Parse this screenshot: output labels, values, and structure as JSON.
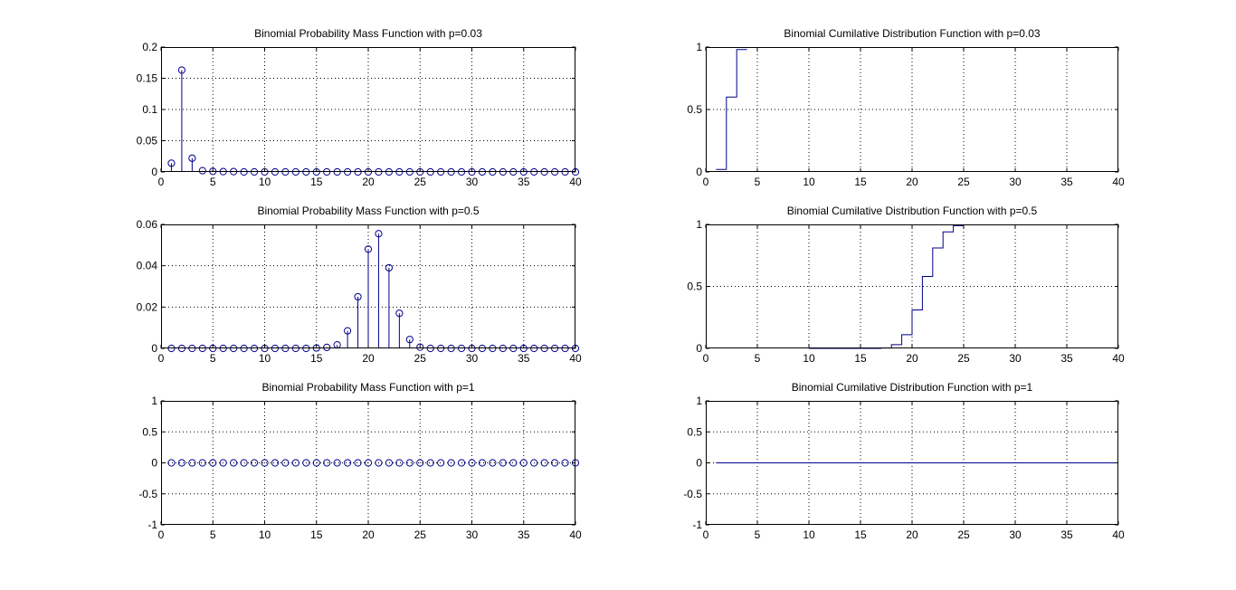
{
  "figure": {
    "background": "#ffffff",
    "series_color": "#00008b"
  },
  "chart_data": [
    {
      "type": "stem",
      "title": "Binomial Probability Mass Function with p=0.03",
      "xlim": [
        0,
        40
      ],
      "ylim": [
        0,
        0.2
      ],
      "xticks": [
        0,
        5,
        10,
        15,
        20,
        25,
        30,
        35,
        40
      ],
      "yticks": [
        0,
        0.05,
        0.1,
        0.15,
        0.2
      ],
      "xticklabels": [
        "0",
        "5",
        "10",
        "15",
        "20",
        "25",
        "30",
        "35",
        "40"
      ],
      "yticklabels": [
        "0",
        "0.05",
        "0.1",
        "0.15",
        "0.2"
      ],
      "grid": true,
      "x": [
        1,
        2,
        3,
        4,
        5,
        6,
        7,
        8,
        9,
        10,
        11,
        12,
        13,
        14,
        15,
        16,
        17,
        18,
        19,
        20,
        21,
        22,
        23,
        24,
        25,
        26,
        27,
        28,
        29,
        30,
        31,
        32,
        33,
        34,
        35,
        36,
        37,
        38,
        39,
        40
      ],
      "y": [
        0.014,
        0.163,
        0.022,
        0.002,
        0.001,
        0.0005,
        0.0005,
        0,
        0,
        0,
        0,
        0,
        0,
        0,
        0,
        0,
        0,
        0,
        0,
        0,
        0,
        0,
        0,
        0,
        0,
        0,
        0,
        0,
        0,
        0,
        0,
        0,
        0,
        0,
        0,
        0,
        0,
        0,
        0,
        0
      ]
    },
    {
      "type": "stairs",
      "title": "Binomial Cumilative Distribution Function with p=0.03",
      "xlim": [
        0,
        40
      ],
      "ylim": [
        0,
        1
      ],
      "xticks": [
        0,
        5,
        10,
        15,
        20,
        25,
        30,
        35,
        40
      ],
      "yticks": [
        0,
        0.5,
        1
      ],
      "xticklabels": [
        "0",
        "5",
        "10",
        "15",
        "20",
        "25",
        "30",
        "35",
        "40"
      ],
      "yticklabels": [
        "0",
        "0.5",
        "1"
      ],
      "grid": true,
      "x": [
        1,
        2,
        3,
        4
      ],
      "y": [
        0.02,
        0.6,
        0.98,
        0.98
      ]
    },
    {
      "type": "stem",
      "title": "Binomial Probability Mass Function with p=0.5",
      "xlim": [
        0,
        40
      ],
      "ylim": [
        0,
        0.06
      ],
      "xticks": [
        0,
        5,
        10,
        15,
        20,
        25,
        30,
        35,
        40
      ],
      "yticks": [
        0,
        0.02,
        0.04,
        0.06
      ],
      "xticklabels": [
        "0",
        "5",
        "10",
        "15",
        "20",
        "25",
        "30",
        "35",
        "40"
      ],
      "yticklabels": [
        "0",
        "0.02",
        "0.04",
        "0.06"
      ],
      "grid": true,
      "x": [
        1,
        2,
        3,
        4,
        5,
        6,
        7,
        8,
        9,
        10,
        11,
        12,
        13,
        14,
        15,
        16,
        17,
        18,
        19,
        20,
        21,
        22,
        23,
        24,
        25,
        26,
        27,
        28,
        29,
        30,
        31,
        32,
        33,
        34,
        35,
        36,
        37,
        38,
        39,
        40
      ],
      "y": [
        0,
        0,
        0,
        0,
        0,
        0,
        0,
        0,
        0,
        0,
        0,
        0,
        0,
        0,
        0.0002,
        0.0005,
        0.0017,
        0.0085,
        0.025,
        0.048,
        0.0555,
        0.039,
        0.017,
        0.0043,
        0.0006,
        0,
        0,
        0,
        0,
        0,
        0,
        0,
        0,
        0,
        0,
        0,
        0,
        0,
        0,
        0
      ]
    },
    {
      "type": "stairs",
      "title": "Binomial Cumilative Distribution Function with p=0.5",
      "xlim": [
        0,
        40
      ],
      "ylim": [
        0,
        1
      ],
      "xticks": [
        0,
        5,
        10,
        15,
        20,
        25,
        30,
        35,
        40
      ],
      "yticks": [
        0,
        0.5,
        1
      ],
      "xticklabels": [
        "0",
        "5",
        "10",
        "15",
        "20",
        "25",
        "30",
        "35",
        "40"
      ],
      "yticklabels": [
        "0",
        "0.5",
        "1"
      ],
      "grid": true,
      "x": [
        10,
        17,
        18,
        19,
        20,
        21,
        22,
        23,
        24,
        25
      ],
      "y": [
        0,
        0.003,
        0.03,
        0.11,
        0.31,
        0.58,
        0.81,
        0.94,
        0.99,
        1.0
      ]
    },
    {
      "type": "stem",
      "title": "Binomial Probability Mass Function with p=1",
      "xlim": [
        0,
        40
      ],
      "ylim": [
        -1,
        1
      ],
      "xticks": [
        0,
        5,
        10,
        15,
        20,
        25,
        30,
        35,
        40
      ],
      "yticks": [
        -1,
        -0.5,
        0,
        0.5,
        1
      ],
      "xticklabels": [
        "0",
        "5",
        "10",
        "15",
        "20",
        "25",
        "30",
        "35",
        "40"
      ],
      "yticklabels": [
        "-1",
        "-0.5",
        "0",
        "0.5",
        "1"
      ],
      "grid": true,
      "x": [
        1,
        2,
        3,
        4,
        5,
        6,
        7,
        8,
        9,
        10,
        11,
        12,
        13,
        14,
        15,
        16,
        17,
        18,
        19,
        20,
        21,
        22,
        23,
        24,
        25,
        26,
        27,
        28,
        29,
        30,
        31,
        32,
        33,
        34,
        35,
        36,
        37,
        38,
        39,
        40
      ],
      "y": [
        0,
        0,
        0,
        0,
        0,
        0,
        0,
        0,
        0,
        0,
        0,
        0,
        0,
        0,
        0,
        0,
        0,
        0,
        0,
        0,
        0,
        0,
        0,
        0,
        0,
        0,
        0,
        0,
        0,
        0,
        0,
        0,
        0,
        0,
        0,
        0,
        0,
        0,
        0,
        0
      ]
    },
    {
      "type": "stairs",
      "title": "Binomial Cumilative Distribution Function with p=1",
      "xlim": [
        0,
        40
      ],
      "ylim": [
        -1,
        1
      ],
      "xticks": [
        0,
        5,
        10,
        15,
        20,
        25,
        30,
        35,
        40
      ],
      "yticks": [
        -1,
        -0.5,
        0,
        0.5,
        1
      ],
      "xticklabels": [
        "0",
        "5",
        "10",
        "15",
        "20",
        "25",
        "30",
        "35",
        "40"
      ],
      "yticklabels": [
        "-1",
        "-0.5",
        "0",
        "0.5",
        "1"
      ],
      "grid": true,
      "x": [
        1,
        40
      ],
      "y": [
        0,
        0
      ]
    }
  ]
}
